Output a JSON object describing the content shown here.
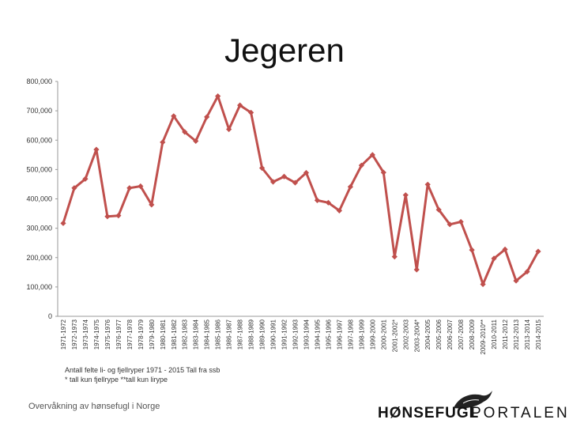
{
  "title": "Jegeren",
  "note_line1": "Antall felte li- og fjellryper 1971 - 2015 Tall fra ssb",
  "note_line2": "* tall kun fjellrype **tall kun lirype",
  "footer": "Overvåkning av hønsefugl i Norge",
  "logo_bold": "HØNSEFUGL",
  "logo_light": "PORTALEN",
  "line_color": "#c0504d",
  "chart_data": {
    "type": "line",
    "title": "Jegeren",
    "xlabel": "",
    "ylabel": "",
    "ylim": [
      0,
      800000
    ],
    "yticks": [
      "0",
      "100,000",
      "200,000",
      "300,000",
      "400,000",
      "500,000",
      "600,000",
      "700,000",
      "800,000"
    ],
    "grid": false,
    "categories": [
      "1971-1972",
      "1972-1973",
      "1973-1974",
      "1974-1975",
      "1975-1976",
      "1976-1977",
      "1977-1978",
      "1978-1979",
      "1979-1980",
      "1980-1981",
      "1981-1982",
      "1982-1983",
      "1983-1984",
      "1984-1985",
      "1985-1986",
      "1986-1987",
      "1987-1988",
      "1988-1989",
      "1989-1990",
      "1990-1991",
      "1991-1992",
      "1992-1993",
      "1993-1994",
      "1994-1995",
      "1995-1996",
      "1996-1997",
      "1997-1998",
      "1998-1999",
      "1999-2000",
      "2000-2001",
      "2001-2002*",
      "2002-2003",
      "2003-2004*",
      "2004-2005",
      "2005-2006",
      "2006-2007",
      "2007-2008",
      "2008-2009",
      "2009-2010**",
      "2010-2011",
      "2011-2012",
      "2012-2013",
      "2013-2014",
      "2014-2015"
    ],
    "series": [
      {
        "values": [
          317000,
          437000,
          468000,
          568000,
          340000,
          343000,
          437000,
          443000,
          380000,
          593000,
          682000,
          628000,
          597000,
          679000,
          750000,
          637000,
          719000,
          694000,
          505000,
          458000,
          476000,
          455000,
          489000,
          395000,
          387000,
          360000,
          441000,
          514000,
          550000,
          490000,
          203000,
          413000,
          159000,
          449000,
          363000,
          313000,
          322000,
          226000,
          109000,
          197000,
          228000,
          121000,
          152000,
          221000
        ]
      }
    ]
  }
}
